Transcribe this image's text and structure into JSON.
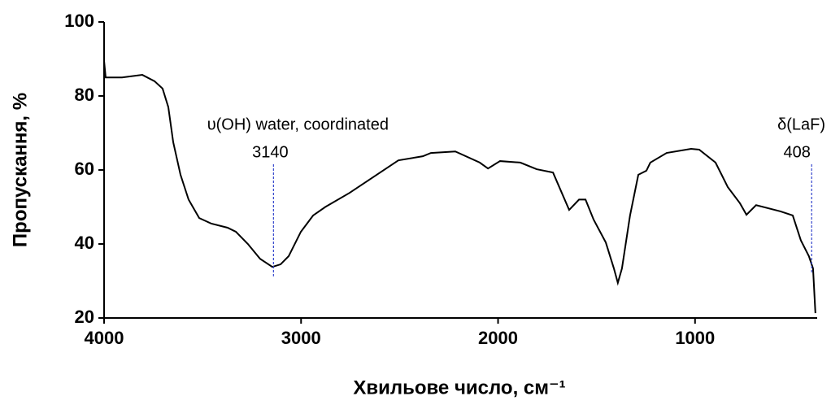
{
  "chart_data": {
    "type": "line",
    "xlabel": "Хвильове число, см⁻¹",
    "ylabel": "Пропускання, %",
    "xlim": [
      4000,
      380
    ],
    "xticks": [
      4000,
      3000,
      2000,
      1000
    ],
    "ylim": [
      20,
      100
    ],
    "yticks": [
      20,
      40,
      60,
      80,
      100
    ],
    "series": [
      {
        "color": "#000000",
        "x": [
          4000,
          3992,
          3909,
          3806,
          3744,
          3703,
          3674,
          3649,
          3612,
          3571,
          3517,
          3455,
          3373,
          3331,
          3270,
          3208,
          3146,
          3104,
          3063,
          3001,
          2939,
          2877,
          2754,
          2630,
          2506,
          2382,
          2341,
          2217,
          2093,
          2051,
          1990,
          1887,
          1804,
          1721,
          1639,
          1589,
          1556,
          1515,
          1453,
          1412,
          1392,
          1371,
          1330,
          1288,
          1247,
          1227,
          1144,
          1020,
          979,
          896,
          834,
          772,
          739,
          690,
          566,
          504,
          463,
          422,
          401,
          389
        ],
        "values": [
          89.5,
          85,
          85,
          85.7,
          84,
          82,
          77,
          67.5,
          58.7,
          52,
          47,
          45.5,
          44.4,
          43.3,
          40,
          36,
          33.8,
          34.5,
          36.7,
          43.3,
          47.7,
          50,
          53.8,
          58.2,
          62.6,
          63.7,
          64.6,
          65,
          62,
          60.4,
          62.4,
          62,
          60.2,
          59.3,
          49.2,
          52,
          52,
          46.6,
          40.4,
          33.4,
          29.5,
          33.4,
          47.7,
          58.7,
          59.8,
          62,
          64.6,
          65.7,
          65.5,
          62,
          55.4,
          51,
          47.9,
          50.5,
          48.8,
          47.7,
          41,
          36.7,
          33.4,
          21.3
        ]
      }
    ],
    "annotations": [
      {
        "text": "υ(OH) water, coordinated",
        "label": "3140",
        "x": 3140
      },
      {
        "text": "δ(LaF)",
        "label": "408",
        "x": 408
      }
    ]
  }
}
